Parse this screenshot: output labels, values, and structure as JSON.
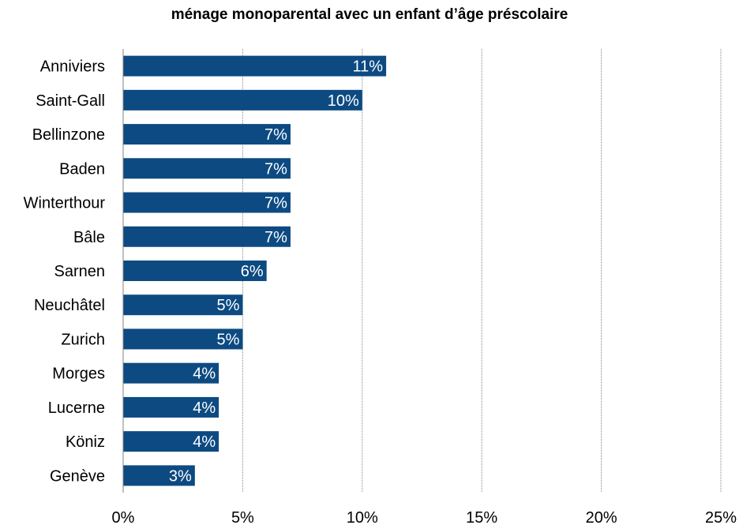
{
  "chart_data": {
    "type": "bar",
    "orientation": "horizontal",
    "title": "ménage monoparental avec un enfant d’âge préscolaire",
    "categories": [
      "Anniviers",
      "Saint-Gall",
      "Bellinzone",
      "Baden",
      "Winterthour",
      "Bâle",
      "Sarnen",
      "Neuchâtel",
      "Zurich",
      "Morges",
      "Lucerne",
      "Köniz",
      "Genève"
    ],
    "values": [
      11,
      10,
      7,
      7,
      7,
      7,
      6,
      5,
      5,
      4,
      4,
      4,
      3
    ],
    "data_labels": [
      "11%",
      "10%",
      "7%",
      "7%",
      "7%",
      "7%",
      "6%",
      "5%",
      "5%",
      "4%",
      "4%",
      "4%",
      "3%"
    ],
    "xlim": [
      0,
      25
    ],
    "x_ticks": [
      0,
      5,
      10,
      15,
      20,
      25
    ],
    "x_tick_labels": [
      "0%",
      "5%",
      "10%",
      "15%",
      "20%",
      "25%"
    ],
    "xlabel": "",
    "ylabel": "",
    "grid": true,
    "legend": "none",
    "bar_color": "#0d4a82"
  }
}
